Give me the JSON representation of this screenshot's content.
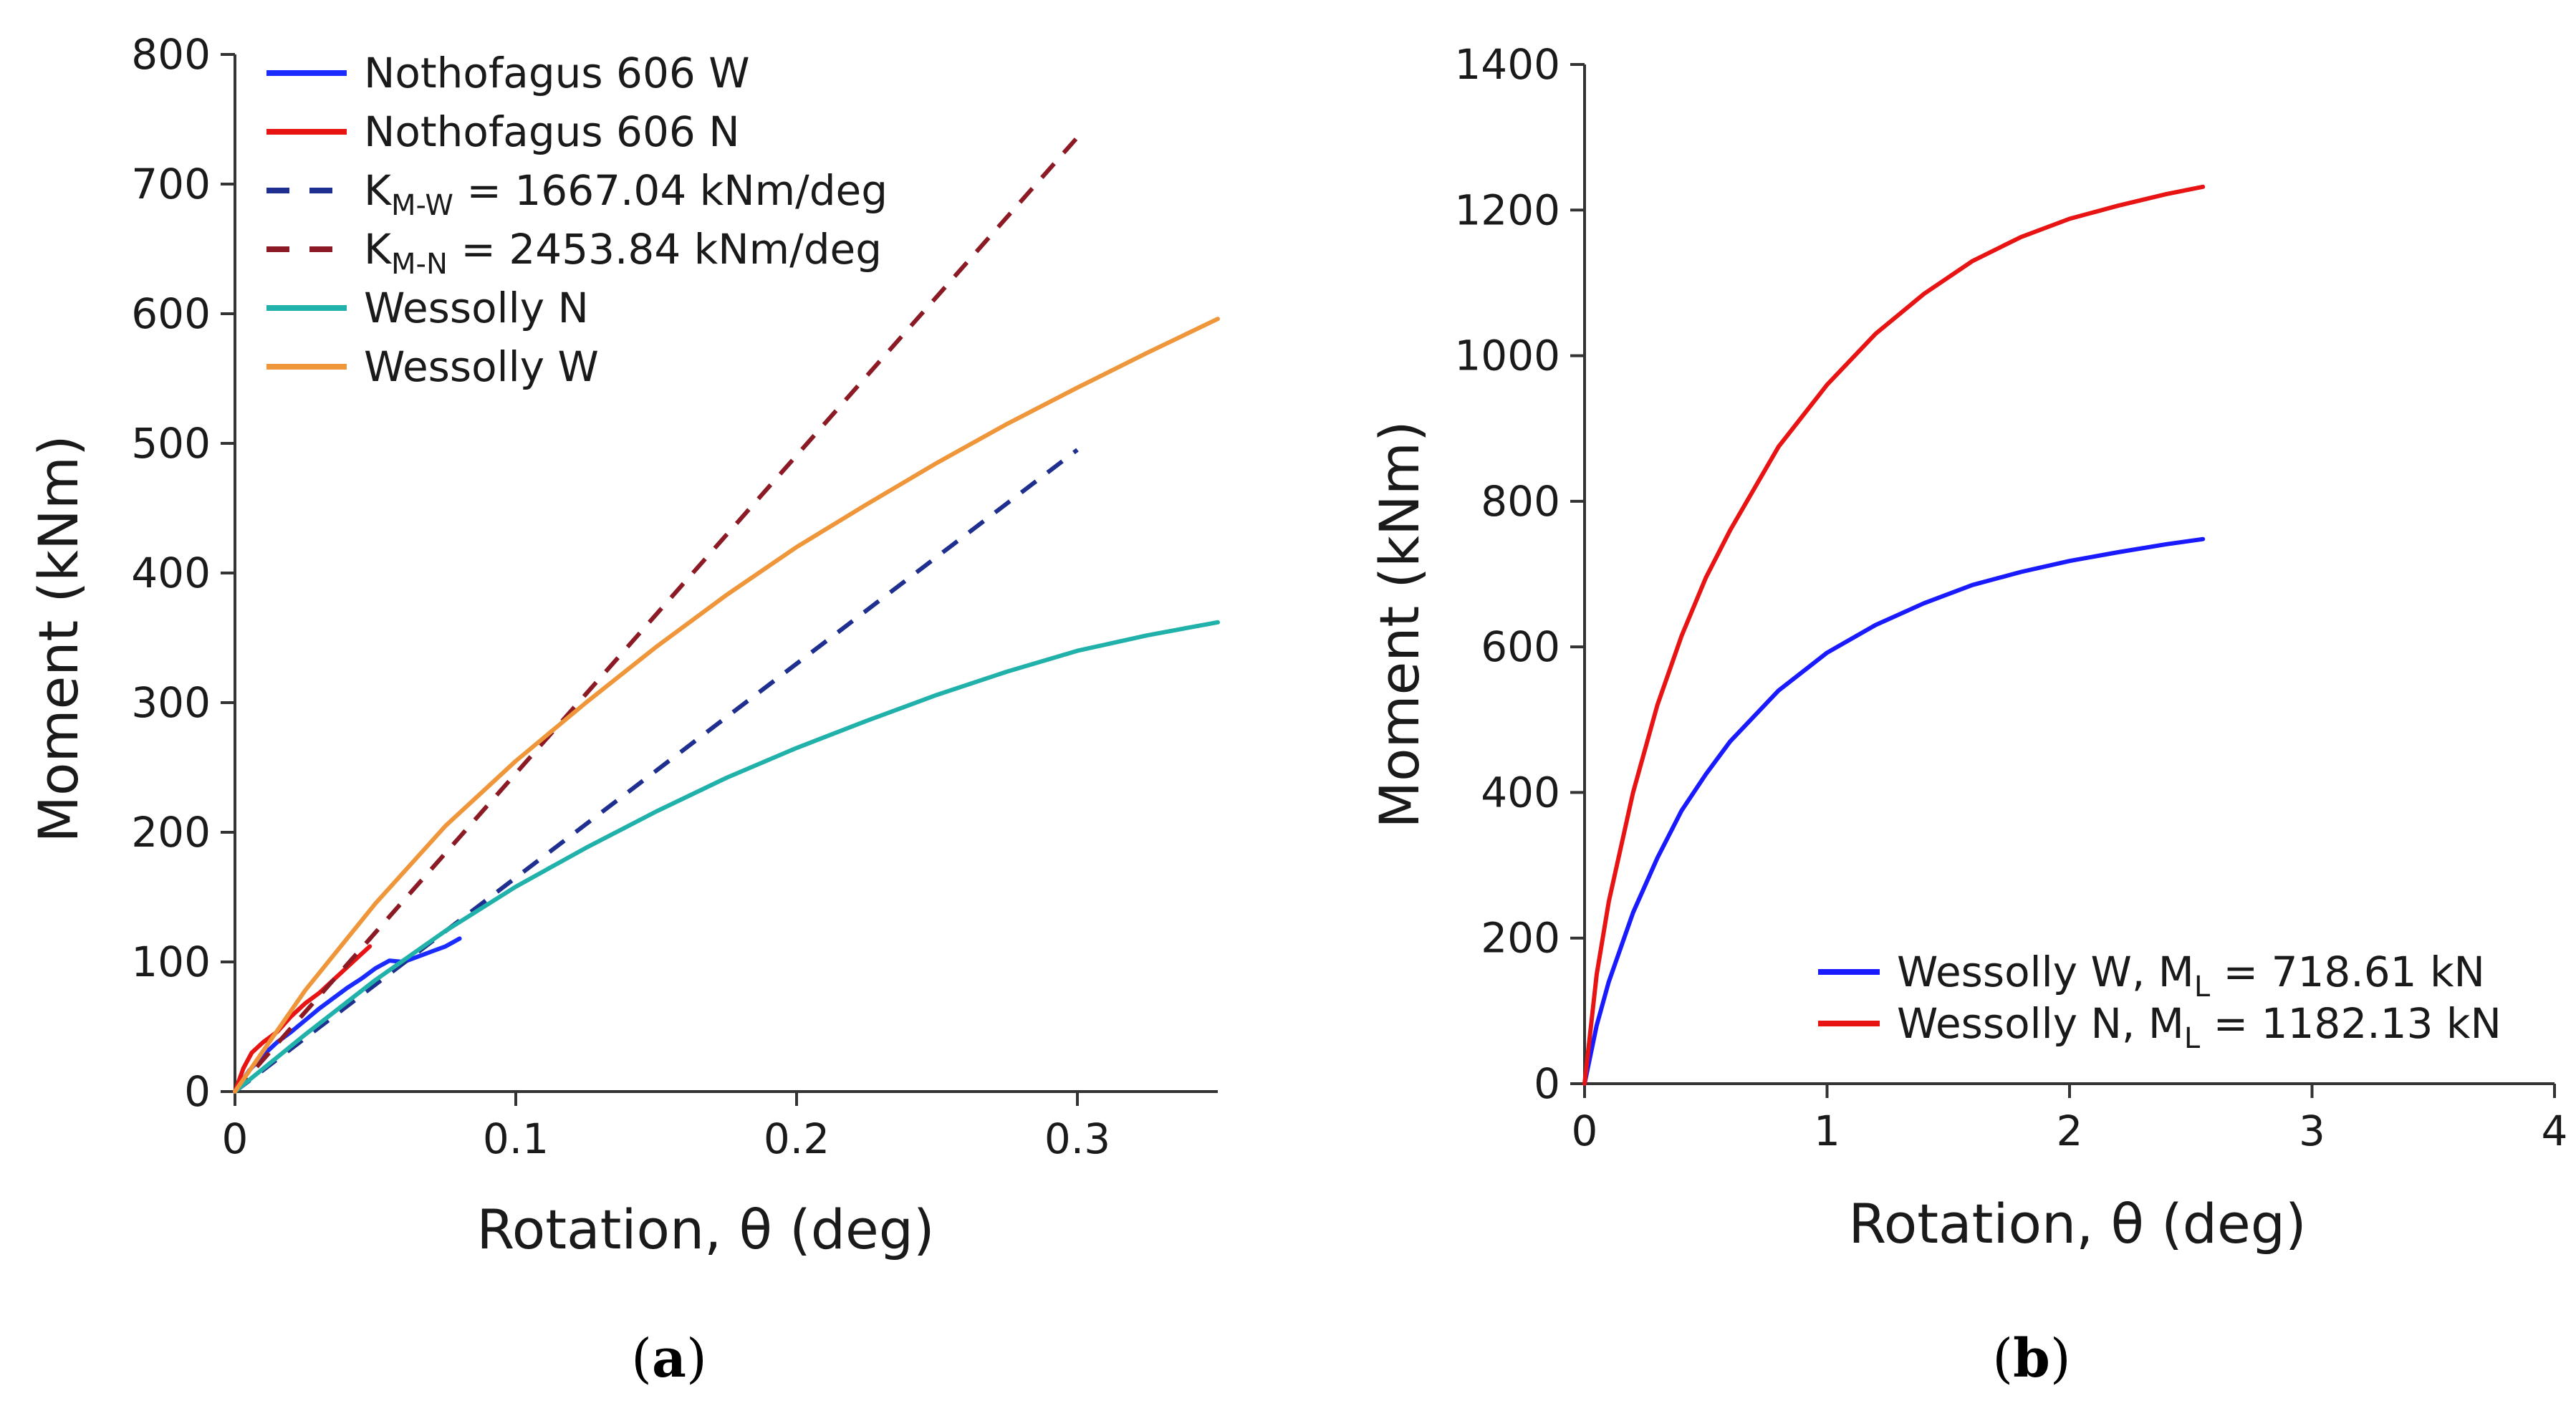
{
  "chart_data": [
    {
      "type": "line",
      "panel_label": "a",
      "xlabel": "Rotation, θ (deg)",
      "ylabel": "Moment (kNm)",
      "xlim": [
        0,
        0.35
      ],
      "ylim": [
        0,
        800
      ],
      "xticks": [
        0,
        0.1,
        0.2,
        0.3
      ],
      "xtick_labels": [
        "0",
        "0.1",
        "0.2",
        "0.3"
      ],
      "yticks": [
        0,
        100,
        200,
        300,
        400,
        500,
        600,
        700,
        800
      ],
      "ytick_labels": [
        "0",
        "100",
        "200",
        "300",
        "400",
        "500",
        "600",
        "700",
        "800"
      ],
      "grid": false,
      "legend_position": "top-left",
      "series": [
        {
          "name": "Nothofagus 606 W",
          "legend_text": "Nothofagus 606 W",
          "color": "#1a2bff",
          "dash": "solid",
          "x": [
            0,
            0.005,
            0.01,
            0.015,
            0.02,
            0.025,
            0.03,
            0.035,
            0.04,
            0.045,
            0.05,
            0.055,
            0.06,
            0.065,
            0.07,
            0.075,
            0.08
          ],
          "y": [
            0,
            16,
            28,
            38,
            46,
            55,
            64,
            72,
            80,
            87,
            95,
            101,
            100,
            104,
            108,
            112,
            118
          ]
        },
        {
          "name": "Nothofagus 606 N",
          "legend_text": "Nothofagus 606 N",
          "color": "#e81414",
          "dash": "solid",
          "x": [
            0,
            0.003,
            0.006,
            0.01,
            0.015,
            0.02,
            0.025,
            0.03,
            0.035,
            0.04,
            0.045,
            0.048
          ],
          "y": [
            0,
            18,
            30,
            38,
            46,
            58,
            68,
            76,
            86,
            96,
            106,
            112
          ]
        },
        {
          "name": "K_M-W",
          "legend_text": "1667.04 kNm/deg",
          "legend_symbol": "K",
          "legend_subscript": "M-W",
          "legend_equals": "=",
          "color": "#1f2f8f",
          "dash": "dashed",
          "x": [
            0,
            0.3
          ],
          "y": [
            0,
            495
          ]
        },
        {
          "name": "K_M-N",
          "legend_text": "2453.84 kNm/deg",
          "legend_symbol": "K",
          "legend_subscript": "M-N",
          "legend_equals": "=",
          "color": "#8b1a24",
          "dash": "dashed",
          "x": [
            0,
            0.3
          ],
          "y": [
            0,
            736
          ]
        },
        {
          "name": "Wessolly N",
          "legend_text": "Wessolly N",
          "color": "#20b2aa",
          "dash": "solid",
          "x": [
            0,
            0.025,
            0.05,
            0.075,
            0.1,
            0.125,
            0.15,
            0.175,
            0.2,
            0.225,
            0.25,
            0.275,
            0.3,
            0.325,
            0.35
          ],
          "y": [
            0,
            44,
            86,
            124,
            158,
            188,
            216,
            242,
            265,
            286,
            306,
            324,
            340,
            352,
            362
          ]
        },
        {
          "name": "Wessolly W",
          "legend_text": "Wessolly W",
          "color": "#f0963a",
          "dash": "solid",
          "x": [
            0,
            0.025,
            0.05,
            0.075,
            0.1,
            0.125,
            0.15,
            0.175,
            0.2,
            0.225,
            0.25,
            0.275,
            0.3,
            0.325,
            0.35
          ],
          "y": [
            0,
            78,
            145,
            205,
            255,
            300,
            343,
            383,
            420,
            453,
            485,
            515,
            543,
            570,
            596
          ]
        }
      ]
    },
    {
      "type": "line",
      "panel_label": "b",
      "xlabel": "Rotation, θ (deg)",
      "ylabel": "Moment (kNm)",
      "xlim": [
        0,
        4
      ],
      "ylim": [
        0,
        1400
      ],
      "xticks": [
        0,
        1,
        2,
        3,
        4
      ],
      "xtick_labels": [
        "0",
        "1",
        "2",
        "3",
        "4"
      ],
      "yticks": [
        0,
        200,
        400,
        600,
        800,
        1000,
        1200,
        1400
      ],
      "ytick_labels": [
        "0",
        "200",
        "400",
        "600",
        "800",
        "1000",
        "1200",
        "1400"
      ],
      "grid": false,
      "legend_position": "bottom-right",
      "series": [
        {
          "name": "Wessolly W",
          "legend_text": "Wessolly W,",
          "legend_symbol": "M",
          "legend_subscript": "L",
          "legend_value": "= 718.61 kN",
          "color": "#1a1aff",
          "dash": "solid",
          "x": [
            0,
            0.05,
            0.1,
            0.2,
            0.3,
            0.4,
            0.5,
            0.6,
            0.8,
            1.0,
            1.2,
            1.4,
            1.6,
            1.8,
            2.0,
            2.2,
            2.4,
            2.55
          ],
          "y": [
            0,
            80,
            140,
            235,
            310,
            375,
            425,
            470,
            540,
            592,
            630,
            660,
            685,
            703,
            718,
            730,
            741,
            748
          ]
        },
        {
          "name": "Wessolly N",
          "legend_text": "Wessolly N,",
          "legend_symbol": "M",
          "legend_subscript": "L",
          "legend_value": "= 1182.13 kN",
          "color": "#e81414",
          "dash": "solid",
          "x": [
            0,
            0.05,
            0.1,
            0.2,
            0.3,
            0.4,
            0.5,
            0.6,
            0.8,
            1.0,
            1.2,
            1.4,
            1.6,
            1.8,
            2.0,
            2.2,
            2.4,
            2.55
          ],
          "y": [
            0,
            150,
            250,
            400,
            520,
            615,
            695,
            760,
            875,
            960,
            1030,
            1085,
            1130,
            1163,
            1188,
            1206,
            1222,
            1232
          ]
        }
      ]
    }
  ]
}
